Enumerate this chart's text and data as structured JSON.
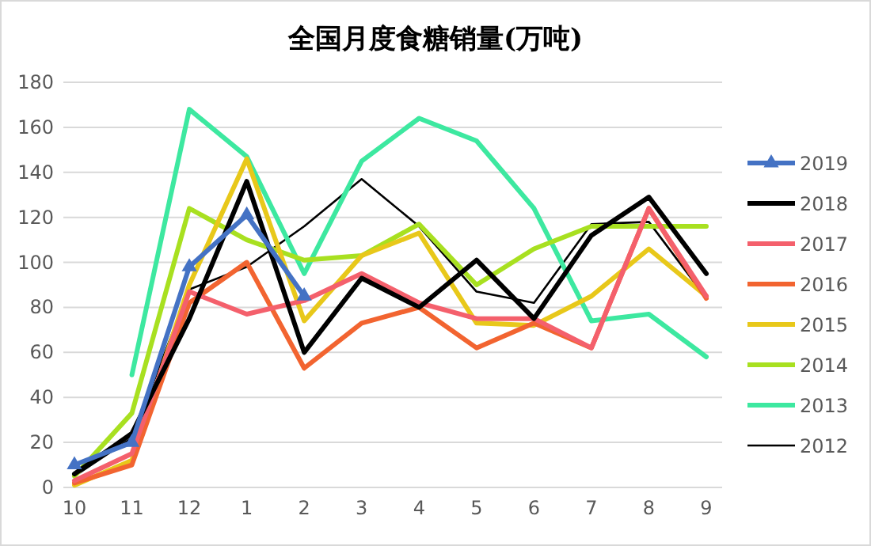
{
  "chart_data": {
    "type": "line",
    "title": "全国月度食糖销量(万吨)",
    "categories": [
      "10",
      "11",
      "12",
      "1",
      "2",
      "3",
      "4",
      "5",
      "6",
      "7",
      "8",
      "9"
    ],
    "ylim": [
      0,
      180
    ],
    "yticks": [
      0,
      20,
      40,
      60,
      80,
      100,
      120,
      140,
      160,
      180
    ],
    "grid": "y",
    "legend": "right",
    "series": [
      {
        "name": "2019",
        "color": "#4472c4",
        "marker": "triangle",
        "values": [
          10,
          20,
          98,
          121,
          85,
          null,
          null,
          null,
          null,
          null,
          null,
          null
        ]
      },
      {
        "name": "2018",
        "color": "#000000",
        "values": [
          6,
          24,
          75,
          136,
          60,
          93,
          80,
          101,
          75,
          112,
          129,
          95
        ]
      },
      {
        "name": "2017",
        "color": "#f4606c",
        "values": [
          3,
          15,
          87,
          77,
          83,
          95,
          82,
          75,
          75,
          62,
          124,
          85
        ]
      },
      {
        "name": "2016",
        "color": "#f26430",
        "values": [
          2,
          10,
          82,
          100,
          53,
          73,
          80,
          62,
          73,
          62,
          124,
          84
        ]
      },
      {
        "name": "2015",
        "color": "#e8c81a",
        "values": [
          1,
          12,
          90,
          146,
          74,
          103,
          113,
          73,
          72,
          85,
          106,
          85
        ]
      },
      {
        "name": "2014",
        "color": "#a8e020",
        "values": [
          5,
          33,
          124,
          110,
          101,
          103,
          117,
          90,
          106,
          116,
          116,
          116
        ]
      },
      {
        "name": "2013",
        "color": "#3de8a0",
        "values": [
          null,
          50,
          168,
          147,
          95,
          145,
          164,
          154,
          124,
          74,
          77,
          58
        ]
      },
      {
        "name": "2012",
        "color": "#000000",
        "values": [
          5,
          22,
          88,
          98,
          116,
          137,
          116,
          87,
          82,
          117,
          118,
          84
        ]
      }
    ]
  }
}
